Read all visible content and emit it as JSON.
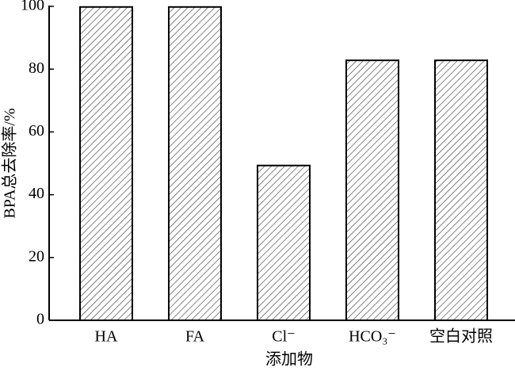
{
  "chart_data": {
    "type": "bar",
    "categories": [
      "HA",
      "FA",
      "Cl⁻",
      "HCO₃⁻",
      "空白对照"
    ],
    "values": [
      99.8,
      99.8,
      49.3,
      82.8,
      82.8
    ],
    "ylim": [
      0,
      100
    ],
    "yticks": [
      0,
      20,
      40,
      60,
      80,
      100
    ],
    "ylabel": "BPA总去除率/%",
    "xlabel": "添加物",
    "color": "#000000",
    "hatch": true
  }
}
